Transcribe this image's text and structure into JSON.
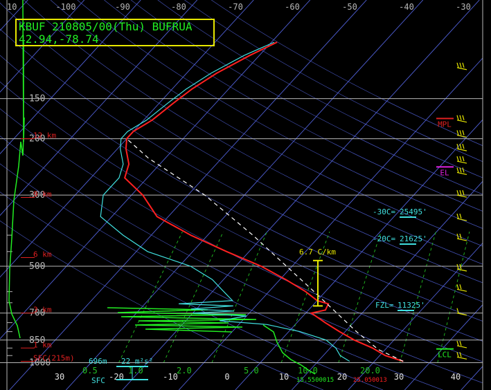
{
  "header": {
    "line1": "KBUF 210805/00(Thu) BUFRUA",
    "line2": "42.94,-78.74"
  },
  "colors": {
    "background": "#000000",
    "isobar": "#b8b8b8",
    "isotherm": "#5060d8",
    "dry_adiabat": "#ffffff",
    "mixing_ratio": "#22c022",
    "temperature": "#ff2020",
    "dewpoint": "#40e0e0",
    "hodograph_green": "#22ee22",
    "parcel": "#ffffff",
    "lapse_rate": "#e8e800",
    "wind_barb": "#e8e800",
    "height_label": "#e02020",
    "mpl": "#e02020",
    "el": "#e020e0",
    "lcl": "#22ee22",
    "cyan_text": "#40e0e0"
  },
  "chart_data": {
    "type": "line",
    "title": "KBUF 210805/00(Thu) BUFRUA",
    "x_top_ticks": [
      "10",
      "-100",
      "-90",
      "-80",
      "-70",
      "-60",
      "-50",
      "-40",
      "-30"
    ],
    "x_bottom_ticks": [
      "-20",
      "-10",
      "0",
      "10",
      "20",
      "30",
      "40"
    ],
    "x_bottom_partial": "30",
    "isobar_labels": [
      "150",
      "200",
      "300",
      "500",
      "700",
      "850",
      "1000"
    ],
    "pressure_levels": [
      150,
      200,
      300,
      500,
      700,
      850,
      1000
    ],
    "height_labels": [
      {
        "label": "12 km",
        "pressure": 200
      },
      {
        "label": "9 km",
        "pressure": 305
      },
      {
        "label": "6 km",
        "pressure": 470
      },
      {
        "label": "3 km",
        "pressure": 700
      },
      {
        "label": "1 km",
        "pressure": 900
      },
      {
        "label": "SFC(215m)",
        "pressure": 990
      }
    ],
    "mixing_ratio_labels": [
      "0.5",
      "1.0",
      "2.0",
      "5.0",
      "10.0",
      "20.0"
    ],
    "levels": [
      {
        "label": "MPL",
        "pressure": 173
      },
      {
        "label": "EL",
        "pressure": 245
      },
      {
        "label": "LCL",
        "pressure": 906
      }
    ],
    "freezing_levels": [
      {
        "label": "-30C=",
        "value": "25495'"
      },
      {
        "label": "-20C=",
        "value": "21625'"
      },
      {
        "label": "FZL=",
        "value": "11325'"
      }
    ],
    "lapse_rate_label": "6.7 C/km",
    "lapse_rate_layer": [
      480,
      665
    ],
    "inflow": {
      "depth": "696m",
      "helicity": "22 m²s²",
      "surface_label": "SFC"
    },
    "surface_values": {
      "dewpoint": "15.5500015",
      "temperature": "25.050013"
    },
    "series": [
      {
        "name": "Temperature",
        "points": [
          [
            -49.0,
            100
          ],
          [
            -51.7,
            110
          ],
          [
            -54.7,
            125
          ],
          [
            -56.5,
            140
          ],
          [
            -57.5,
            155
          ],
          [
            -58.5,
            175
          ],
          [
            -60.0,
            190
          ],
          [
            -60.0,
            200
          ],
          [
            -58.5,
            215
          ],
          [
            -55.5,
            240
          ],
          [
            -54.0,
            265
          ],
          [
            -48.0,
            300
          ],
          [
            -42.0,
            350
          ],
          [
            -33.0,
            400
          ],
          [
            -24.0,
            450
          ],
          [
            -15.5,
            500
          ],
          [
            -9.0,
            550
          ],
          [
            -3.5,
            600
          ],
          [
            0.0,
            640
          ],
          [
            2.5,
            655
          ],
          [
            3.0,
            685
          ],
          [
            1.0,
            700
          ],
          [
            5.0,
            750
          ],
          [
            9.0,
            800
          ],
          [
            13.0,
            850
          ],
          [
            17.5,
            900
          ],
          [
            21.0,
            950
          ],
          [
            25.1,
            990
          ]
        ]
      },
      {
        "name": "Dewpoint",
        "points": [
          [
            -49.5,
            100
          ],
          [
            -52.7,
            110
          ],
          [
            -55.7,
            125
          ],
          [
            -57.5,
            140
          ],
          [
            -58.5,
            155
          ],
          [
            -59.5,
            175
          ],
          [
            -61.0,
            190
          ],
          [
            -61.0,
            200
          ],
          [
            -59.5,
            215
          ],
          [
            -56.5,
            240
          ],
          [
            -55.0,
            265
          ],
          [
            -55.0,
            300
          ],
          [
            -52.0,
            350
          ],
          [
            -45.0,
            400
          ],
          [
            -38.0,
            450
          ],
          [
            -28.0,
            500
          ],
          [
            -22.0,
            550
          ],
          [
            -18.0,
            600
          ],
          [
            -15.0,
            640
          ],
          [
            -24.0,
            655
          ],
          [
            -14.0,
            665
          ],
          [
            -21.0,
            680
          ],
          [
            -13.0,
            690
          ],
          [
            -20.0,
            700
          ],
          [
            -10.0,
            715
          ],
          [
            -14.0,
            740
          ],
          [
            -5.0,
            760
          ],
          [
            2.0,
            800
          ],
          [
            8.0,
            850
          ],
          [
            11.0,
            900
          ],
          [
            13.0,
            950
          ],
          [
            15.6,
            990
          ]
        ]
      },
      {
        "name": "Parcel",
        "points": [
          [
            25.1,
            990
          ],
          [
            18.8,
            910
          ],
          [
            12.0,
            800
          ],
          [
            5.5,
            700
          ],
          [
            -2.0,
            600
          ],
          [
            -11.0,
            500
          ],
          [
            -22.0,
            400
          ],
          [
            -37.0,
            300
          ],
          [
            -53.0,
            230
          ],
          [
            -60.0,
            200
          ]
        ]
      }
    ],
    "wind_barbs": [
      {
        "pressure": 120,
        "speed_kt": 15
      },
      {
        "pressure": 175,
        "speed_kt": 15
      },
      {
        "pressure": 195,
        "speed_kt": 15
      },
      {
        "pressure": 215,
        "speed_kt": 15
      },
      {
        "pressure": 235,
        "speed_kt": 15
      },
      {
        "pressure": 255,
        "speed_kt": 15
      },
      {
        "pressure": 300,
        "speed_kt": 15
      },
      {
        "pressure": 355,
        "speed_kt": 10
      },
      {
        "pressure": 410,
        "speed_kt": 10
      },
      {
        "pressure": 510,
        "speed_kt": 10
      },
      {
        "pressure": 590,
        "speed_kt": 10
      },
      {
        "pressure": 700,
        "speed_kt": 5
      },
      {
        "pressure": 885,
        "speed_kt": 10
      },
      {
        "pressure": 960,
        "speed_kt": 10
      }
    ],
    "hodograph_trace": [
      [
        33,
        0
      ],
      [
        34,
        195
      ],
      [
        34,
        60
      ],
      [
        34,
        205
      ],
      [
        35,
        170
      ],
      [
        33,
        225
      ],
      [
        30,
        205
      ],
      [
        27,
        240
      ],
      [
        20,
        290
      ],
      [
        17,
        345
      ],
      [
        14,
        390
      ],
      [
        13,
        435
      ],
      [
        17,
        454
      ],
      [
        25,
        471
      ],
      [
        27,
        480
      ],
      [
        29,
        489
      ]
    ]
  }
}
